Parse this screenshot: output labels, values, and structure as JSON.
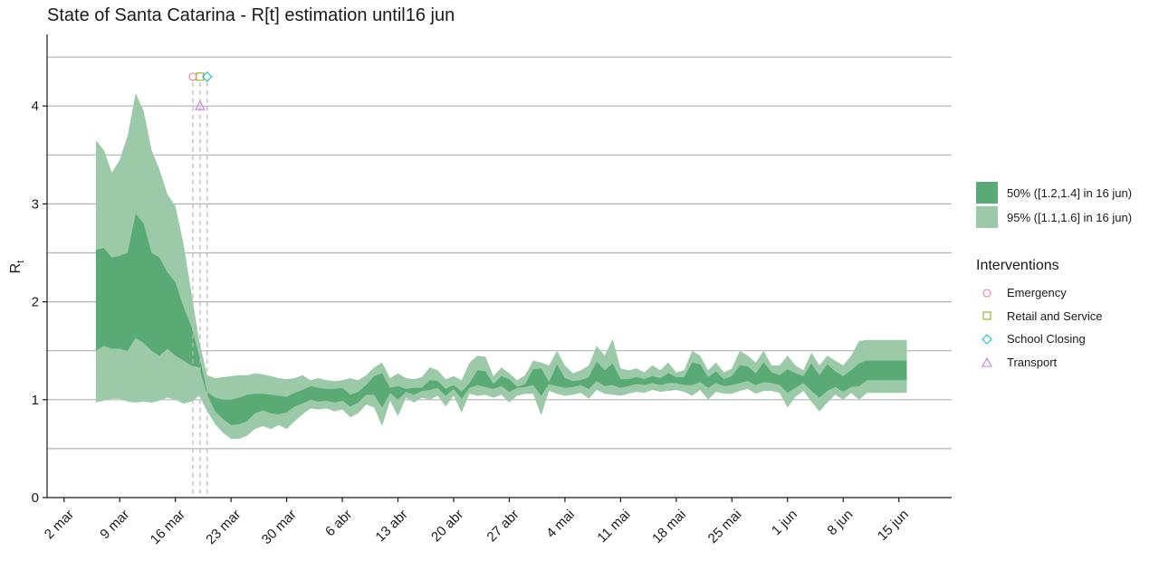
{
  "chart_data": {
    "type": "area",
    "title": "State of Santa Catarina - R[t] estimation until16 jun",
    "ylabel": "R",
    "ylabel_sub": "t",
    "xlabel": "",
    "ylim": [
      0,
      4.8
    ],
    "y_ticks": [
      0,
      1,
      2,
      3,
      4
    ],
    "y_gridlines": [
      0.5,
      1,
      1.5,
      2,
      2.5,
      3,
      3.5,
      4,
      4.5
    ],
    "x_domain": [
      0,
      110
    ],
    "x_ticks": [
      {
        "x": 1,
        "label": "2 mar"
      },
      {
        "x": 8,
        "label": "9 mar"
      },
      {
        "x": 15,
        "label": "16 mar"
      },
      {
        "x": 22,
        "label": "23 mar"
      },
      {
        "x": 29,
        "label": "30 mar"
      },
      {
        "x": 36,
        "label": "6 abr"
      },
      {
        "x": 43,
        "label": "13 abr"
      },
      {
        "x": 50,
        "label": "20 abr"
      },
      {
        "x": 57,
        "label": "27 abr"
      },
      {
        "x": 64,
        "label": "4 mai"
      },
      {
        "x": 71,
        "label": "11 mai"
      },
      {
        "x": 78,
        "label": "18 mai"
      },
      {
        "x": 85,
        "label": "25 mai"
      },
      {
        "x": 92,
        "label": "1 jun"
      },
      {
        "x": 99,
        "label": "8 jun"
      },
      {
        "x": 106,
        "label": "15 jun"
      }
    ],
    "band_x": [
      5,
      6,
      7,
      8,
      9,
      10,
      11,
      12,
      13,
      14,
      15,
      16,
      17,
      18,
      19,
      20,
      21,
      22,
      23,
      24,
      25,
      26,
      27,
      28,
      29,
      30,
      31,
      32,
      33,
      34,
      35,
      36,
      37,
      38,
      39,
      40,
      41,
      42,
      43,
      44,
      45,
      46,
      47,
      48,
      49,
      50,
      51,
      52,
      53,
      54,
      55,
      56,
      57,
      58,
      59,
      60,
      61,
      62,
      63,
      64,
      65,
      66,
      67,
      68,
      69,
      70,
      71,
      72,
      73,
      74,
      75,
      76,
      77,
      78,
      79,
      80,
      81,
      82,
      83,
      84,
      85,
      86,
      87,
      88,
      89,
      90,
      91,
      92,
      93,
      94,
      95,
      96,
      97,
      98,
      99,
      100,
      101,
      102,
      103,
      104,
      105,
      106,
      107
    ],
    "series": [
      {
        "name": "95% ([1.1,1.6] in 16 jun)",
        "color": "#9ccaa9",
        "upper": [
          3.65,
          3.55,
          3.32,
          3.45,
          3.7,
          4.13,
          3.95,
          3.55,
          3.35,
          3.1,
          2.98,
          2.6,
          2.1,
          1.6,
          1.25,
          1.22,
          1.23,
          1.24,
          1.25,
          1.25,
          1.27,
          1.26,
          1.24,
          1.22,
          1.21,
          1.22,
          1.25,
          1.2,
          1.22,
          1.2,
          1.19,
          1.2,
          1.22,
          1.2,
          1.25,
          1.33,
          1.38,
          1.22,
          1.27,
          1.22,
          1.21,
          1.23,
          1.33,
          1.3,
          1.21,
          1.24,
          1.2,
          1.38,
          1.45,
          1.44,
          1.24,
          1.33,
          1.27,
          1.2,
          1.25,
          1.4,
          1.38,
          1.35,
          1.5,
          1.35,
          1.27,
          1.3,
          1.35,
          1.55,
          1.45,
          1.62,
          1.32,
          1.3,
          1.32,
          1.28,
          1.35,
          1.3,
          1.38,
          1.28,
          1.3,
          1.5,
          1.45,
          1.3,
          1.38,
          1.28,
          1.32,
          1.5,
          1.45,
          1.38,
          1.5,
          1.35,
          1.35,
          1.45,
          1.35,
          1.3,
          1.48,
          1.35,
          1.45,
          1.4,
          1.35,
          1.45,
          1.6,
          1.61,
          1.61,
          1.61,
          1.61,
          1.61,
          1.61
        ],
        "lower": [
          0.97,
          0.99,
          1.01,
          1.01,
          0.98,
          0.97,
          0.98,
          0.97,
          0.99,
          1.02,
          1.0,
          0.96,
          0.98,
          1.04,
          0.88,
          0.75,
          0.66,
          0.6,
          0.6,
          0.63,
          0.7,
          0.73,
          0.7,
          0.74,
          0.7,
          0.78,
          0.85,
          0.91,
          0.9,
          0.91,
          0.88,
          0.9,
          0.82,
          0.86,
          0.95,
          0.92,
          0.73,
          0.99,
          0.83,
          1.02,
          0.97,
          1.02,
          1.0,
          1.04,
          0.93,
          1.04,
          0.87,
          1.06,
          1.04,
          1.05,
          1.02,
          1.05,
          0.97,
          1.04,
          1.06,
          1.06,
          0.84,
          1.09,
          1.06,
          1.04,
          1.05,
          1.07,
          1.01,
          1.1,
          1.06,
          1.05,
          1.04,
          1.06,
          1.08,
          1.07,
          1.1,
          1.08,
          1.09,
          1.1,
          1.08,
          1.04,
          1.1,
          1.0,
          1.08,
          1.06,
          1.06,
          1.09,
          1.11,
          1.06,
          1.09,
          1.09,
          1.07,
          0.92,
          1.03,
          1.09,
          0.98,
          0.88,
          0.97,
          1.05,
          1.0,
          1.07,
          1.0,
          1.07,
          1.07,
          1.07,
          1.07,
          1.07,
          1.07
        ]
      },
      {
        "name": "50% ([1.2,1.4] in 16 jun)",
        "color": "#5aaa76",
        "upper": [
          2.53,
          2.55,
          2.45,
          2.47,
          2.5,
          2.9,
          2.8,
          2.5,
          2.45,
          2.3,
          2.2,
          1.95,
          1.75,
          1.45,
          1.08,
          1.02,
          1.0,
          1.0,
          1.02,
          1.05,
          1.06,
          1.06,
          1.05,
          1.04,
          1.03,
          1.07,
          1.1,
          1.14,
          1.12,
          1.11,
          1.11,
          1.12,
          1.05,
          1.08,
          1.15,
          1.24,
          1.27,
          1.12,
          1.14,
          1.11,
          1.12,
          1.12,
          1.2,
          1.19,
          1.11,
          1.15,
          1.08,
          1.17,
          1.3,
          1.29,
          1.16,
          1.24,
          1.21,
          1.13,
          1.16,
          1.31,
          1.32,
          1.18,
          1.36,
          1.22,
          1.19,
          1.2,
          1.23,
          1.39,
          1.3,
          1.37,
          1.21,
          1.21,
          1.23,
          1.21,
          1.24,
          1.22,
          1.27,
          1.23,
          1.23,
          1.38,
          1.36,
          1.23,
          1.29,
          1.21,
          1.24,
          1.35,
          1.34,
          1.27,
          1.38,
          1.28,
          1.25,
          1.31,
          1.27,
          1.24,
          1.37,
          1.25,
          1.36,
          1.29,
          1.24,
          1.3,
          1.37,
          1.4,
          1.4,
          1.4,
          1.4,
          1.4,
          1.4
        ],
        "lower": [
          1.5,
          1.55,
          1.52,
          1.52,
          1.5,
          1.63,
          1.58,
          1.5,
          1.45,
          1.52,
          1.45,
          1.4,
          1.35,
          1.33,
          1.05,
          0.88,
          0.8,
          0.74,
          0.75,
          0.78,
          0.86,
          0.89,
          0.86,
          0.85,
          0.87,
          0.93,
          0.96,
          1.0,
          0.98,
          0.99,
          0.97,
          0.99,
          0.93,
          0.97,
          1.05,
          1.05,
          0.92,
          1.07,
          1.0,
          1.08,
          1.05,
          1.09,
          1.1,
          1.12,
          1.04,
          1.11,
          1.01,
          1.12,
          1.15,
          1.13,
          1.11,
          1.14,
          1.08,
          1.12,
          1.13,
          1.15,
          1.04,
          1.16,
          1.14,
          1.12,
          1.13,
          1.15,
          1.11,
          1.19,
          1.14,
          1.15,
          1.12,
          1.14,
          1.16,
          1.15,
          1.17,
          1.15,
          1.17,
          1.17,
          1.15,
          1.15,
          1.18,
          1.12,
          1.17,
          1.14,
          1.15,
          1.17,
          1.19,
          1.15,
          1.18,
          1.17,
          1.15,
          1.07,
          1.12,
          1.17,
          1.09,
          1.02,
          1.09,
          1.13,
          1.08,
          1.13,
          1.14,
          1.2,
          1.2,
          1.2,
          1.2,
          1.2,
          1.2
        ]
      }
    ],
    "interventions": [
      {
        "name": "Emergency",
        "x": 17.2,
        "y": 4.3,
        "shape": "circle",
        "color": "#e8818e"
      },
      {
        "name": "Retail and Service",
        "x": 18.1,
        "y": 4.3,
        "shape": "square",
        "color": "#9aaa1e"
      },
      {
        "name": "School Closing",
        "x": 19.0,
        "y": 4.3,
        "shape": "diamond",
        "color": "#16bdc5"
      },
      {
        "name": "Transport",
        "x": 18.1,
        "y": 4.0,
        "shape": "triangle",
        "color": "#c77be6"
      }
    ],
    "legend_title": "Interventions",
    "legend_placement": "right"
  }
}
